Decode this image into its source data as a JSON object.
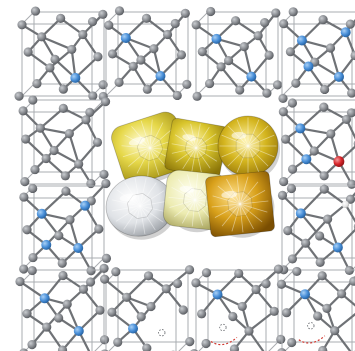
{
  "figure": {
    "background": "#ffffff",
    "colors": {
      "carbon": "#8c8f94",
      "carbon_dark": "#5f6267",
      "bond": "#6f7276",
      "cell_edge": "#a9acb0",
      "nitrogen": "#4a90d9",
      "oxygen": "#d8262b",
      "hydrogen": "#e8e8e8",
      "vacancy_path": "#d0342c"
    },
    "center_photo": {
      "subject": "cut-gemstones-photo",
      "stones": [
        {
          "kind": "yellow-cushion-diamond",
          "color": "#e6d84a"
        },
        {
          "kind": "yellow-radiant-diamond",
          "color": "#d9c52c"
        },
        {
          "kind": "yellow-round-brilliant-diamond",
          "color": "#d4b51f"
        },
        {
          "kind": "colorless-round-diamond",
          "color": "#dfe2e6"
        },
        {
          "kind": "pale-yellow-cushion-diamond",
          "color": "#ecebb0"
        },
        {
          "kind": "orange-yellow-radiant-diamond",
          "color": "#d8a01a"
        }
      ]
    },
    "panels": [
      {
        "row": 0,
        "col": 0,
        "defect": "single-nitrogen"
      },
      {
        "row": 0,
        "col": 1,
        "defect": "nitrogen-pair"
      },
      {
        "row": 0,
        "col": 2,
        "defect": "nitrogen-pair"
      },
      {
        "row": 0,
        "col": 3,
        "defect": "nitrogen-cluster"
      },
      {
        "row": 1,
        "col": 0,
        "defect": "pristine"
      },
      {
        "row": 1,
        "col": 3,
        "defect": "nitrogen-oxygen"
      },
      {
        "row": 2,
        "col": 0,
        "defect": "nitrogen-cluster"
      },
      {
        "row": 2,
        "col": 3,
        "defect": "nitrogen-hydrogen"
      },
      {
        "row": 3,
        "col": 0,
        "defect": "nitrogen-pair"
      },
      {
        "row": 3,
        "col": 1,
        "defect": "vacancy"
      },
      {
        "row": 3,
        "col": 2,
        "defect": "vacancy-path"
      },
      {
        "row": 3,
        "col": 3,
        "defect": "vacancy-path"
      }
    ]
  }
}
